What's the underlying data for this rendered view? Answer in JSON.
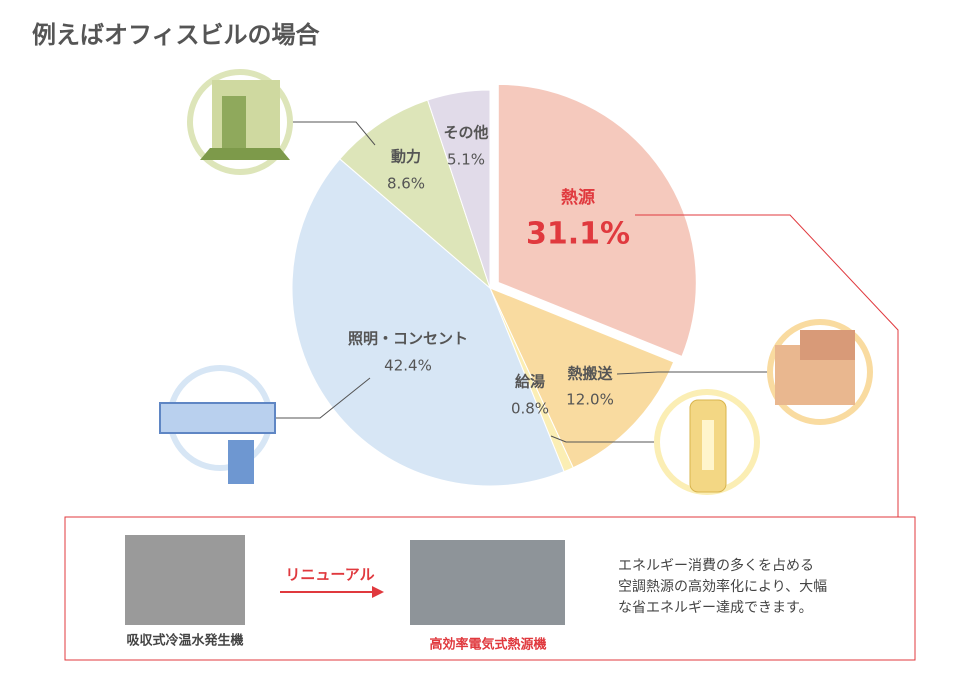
{
  "chart_data": {
    "type": "pie",
    "title": "例えばオフィスビルの場合",
    "categories": [
      "熱源",
      "熱搬送",
      "給湯",
      "照明・コンセント",
      "動力",
      "その他"
    ],
    "values": [
      31.1,
      12.0,
      0.8,
      42.4,
      8.6,
      5.1
    ],
    "value_labels": [
      "31.1%",
      "12.0%",
      "0.8%",
      "42.4%",
      "8.6%",
      "5.1%"
    ],
    "colors": [
      "#f5c9bd",
      "#f9dba0",
      "#fbeeb4",
      "#d7e6f5",
      "#dde5b9",
      "#e1dbe9"
    ]
  },
  "renewal": {
    "before": "吸収式冷温水発生機",
    "arrow": "リニューアル",
    "after": "高効率電気式熱源機",
    "description": [
      "エネルギー消費の多くを占める",
      "空調熱源の高効率化により、大幅",
      "な省エネルギー達成できます。"
    ]
  }
}
